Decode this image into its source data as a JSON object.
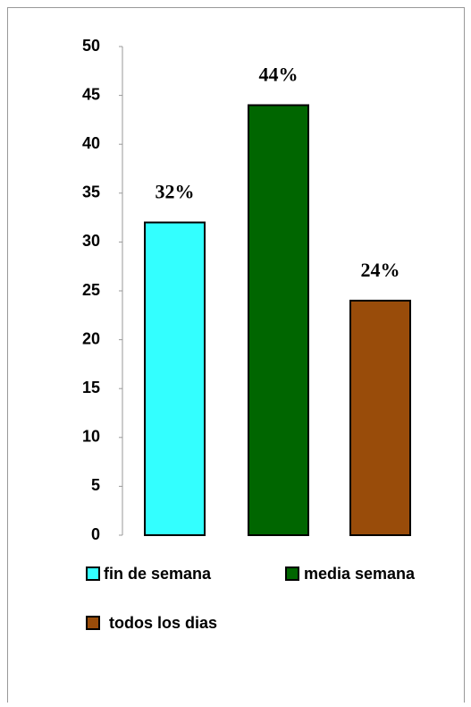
{
  "chart_data": {
    "type": "bar",
    "series": [
      {
        "name": "fin de semana",
        "color": "#33ffff",
        "values": [
          32
        ],
        "value_labels": [
          "32%"
        ]
      },
      {
        "name": "media semana",
        "color": "#006600",
        "values": [
          44
        ],
        "value_labels": [
          "44%"
        ]
      },
      {
        "name": "todos los dias",
        "color": "#994c0a",
        "values": [
          24
        ],
        "value_labels": [
          "24%"
        ]
      }
    ],
    "ylim": [
      0,
      50
    ],
    "yticks": [
      0,
      5,
      10,
      15,
      20,
      25,
      30,
      35,
      40,
      45,
      50
    ],
    "legend": "bottom"
  }
}
